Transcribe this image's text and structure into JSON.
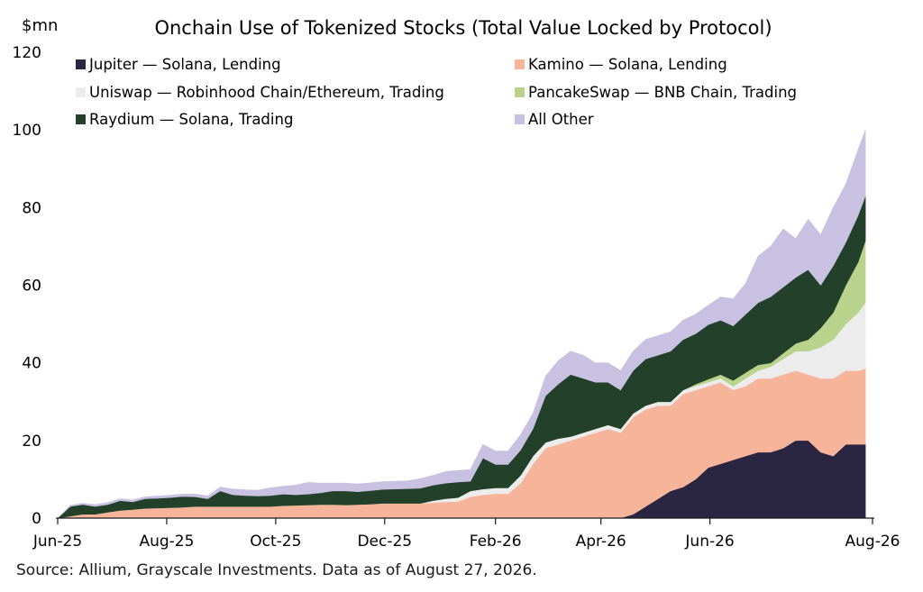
{
  "chart_data": {
    "type": "area",
    "stacked": true,
    "title": "Onchain Use of Tokenized Stocks (Total Value Locked by Protocol)",
    "ylabel": "$mn",
    "xlabel": "",
    "ylim": [
      0,
      120
    ],
    "yticks": [
      0,
      20,
      40,
      60,
      80,
      100,
      120
    ],
    "xlim": [
      "2025-06-01",
      "2026-08-31"
    ],
    "xtick_labels": [
      "Jun-25",
      "Aug-25",
      "Oct-25",
      "Dec-25",
      "Feb-26",
      "Apr-26",
      "Jun-26",
      "Aug-26"
    ],
    "legend_position": "top-left, two columns",
    "grid": false,
    "x": [
      "2025-06-01",
      "2025-06-08",
      "2025-06-15",
      "2025-06-22",
      "2025-06-29",
      "2025-07-06",
      "2025-07-13",
      "2025-07-20",
      "2025-07-27",
      "2025-08-03",
      "2025-08-10",
      "2025-08-17",
      "2025-08-24",
      "2025-08-31",
      "2025-09-07",
      "2025-09-14",
      "2025-09-21",
      "2025-09-28",
      "2025-10-05",
      "2025-10-12",
      "2025-10-19",
      "2025-10-26",
      "2025-11-02",
      "2025-11-09",
      "2025-11-16",
      "2025-11-23",
      "2025-11-30",
      "2025-12-07",
      "2025-12-14",
      "2025-12-21",
      "2025-12-28",
      "2026-01-04",
      "2026-01-11",
      "2026-01-18",
      "2026-01-25",
      "2026-02-01",
      "2026-02-08",
      "2026-02-15",
      "2026-02-22",
      "2026-03-01",
      "2026-03-08",
      "2026-03-15",
      "2026-03-22",
      "2026-03-29",
      "2026-04-05",
      "2026-04-12",
      "2026-04-19",
      "2026-04-26",
      "2026-05-03",
      "2026-05-10",
      "2026-05-17",
      "2026-05-24",
      "2026-05-31",
      "2026-06-07",
      "2026-06-14",
      "2026-06-21",
      "2026-06-28",
      "2026-07-05",
      "2026-07-12",
      "2026-07-19",
      "2026-07-26",
      "2026-08-02",
      "2026-08-09",
      "2026-08-16",
      "2026-08-23",
      "2026-08-27"
    ],
    "series": [
      {
        "name": "Jupiter — Solana, Lending",
        "color": "#2a2540",
        "values": [
          0,
          0,
          0,
          0,
          0,
          0,
          0,
          0,
          0,
          0,
          0,
          0,
          0,
          0,
          0,
          0,
          0,
          0,
          0,
          0,
          0,
          0,
          0,
          0,
          0,
          0,
          0,
          0,
          0,
          0,
          0,
          0,
          0,
          0,
          0,
          0,
          0,
          0,
          0,
          0,
          0,
          0,
          0,
          0,
          0,
          0,
          1,
          3,
          5,
          7,
          8,
          10,
          13,
          14,
          15,
          16,
          17,
          17,
          18,
          20,
          20,
          17,
          16,
          19,
          19,
          19
        ]
      },
      {
        "name": "Kamino — Solana, Lending",
        "color": "#f6b49a",
        "values": [
          0,
          0.5,
          1,
          1,
          1.5,
          2,
          2.2,
          2.5,
          2.6,
          2.7,
          2.8,
          3,
          3,
          3,
          3,
          3,
          3,
          3,
          3.2,
          3.3,
          3.4,
          3.5,
          3.5,
          3.4,
          3.5,
          3.6,
          3.8,
          3.8,
          3.8,
          3.8,
          4,
          4.2,
          4.3,
          5.5,
          6,
          6.3,
          6.3,
          9,
          14,
          18,
          19,
          20,
          21,
          22,
          23,
          22,
          25,
          25,
          24,
          22,
          24,
          23,
          21,
          21,
          18,
          18,
          19,
          19,
          19,
          18,
          17,
          19,
          20,
          19,
          19,
          19.5
        ]
      },
      {
        "name": "Uniswap — Robinhood Chain/Ethereum, Trading",
        "color": "#ececec",
        "values": [
          0,
          0,
          0,
          0,
          0,
          0,
          0,
          0,
          0,
          0,
          0,
          0,
          0,
          0,
          0,
          0,
          0,
          0,
          0,
          0,
          0,
          0,
          0,
          0,
          0,
          0,
          0,
          0,
          0,
          0,
          0.5,
          0.8,
          1,
          1.5,
          1.5,
          1.5,
          1.5,
          2,
          2,
          1.5,
          1.5,
          1,
          1,
          1,
          1,
          1,
          1,
          1,
          1,
          1,
          1,
          1,
          1,
          1,
          1,
          2,
          2,
          3,
          4,
          5,
          6,
          8,
          10,
          12,
          15,
          17
        ]
      },
      {
        "name": "PancakeSwap — BNB Chain, Trading",
        "color": "#b9d38c",
        "values": [
          0,
          0,
          0,
          0,
          0,
          0,
          0,
          0,
          0,
          0,
          0,
          0,
          0,
          0,
          0,
          0,
          0,
          0,
          0,
          0,
          0,
          0,
          0,
          0,
          0,
          0,
          0,
          0,
          0,
          0,
          0,
          0,
          0,
          0,
          0,
          0,
          0,
          0,
          0,
          0,
          0,
          0,
          0,
          0,
          0,
          0,
          0,
          0,
          0,
          0,
          0,
          0.5,
          0.8,
          1,
          1.5,
          1.5,
          1.5,
          1,
          1.5,
          2,
          3,
          5,
          7,
          10,
          13,
          16
        ]
      },
      {
        "name": "Raydium — Solana, Trading",
        "color": "#22402a",
        "values": [
          0,
          2.5,
          2.5,
          2,
          2,
          2.5,
          2,
          2.5,
          2.5,
          2.6,
          2.8,
          2.5,
          2,
          4,
          3,
          2.8,
          2.7,
          2.8,
          3,
          2.7,
          2.8,
          3,
          3.5,
          3.6,
          3.3,
          3.5,
          3.6,
          3.7,
          3.8,
          3.9,
          4,
          4,
          4,
          2.5,
          8,
          6,
          6,
          6.5,
          7,
          12,
          14,
          16,
          14,
          12,
          11,
          10,
          11,
          12,
          12,
          13,
          13,
          13,
          14,
          14,
          14,
          15,
          16,
          17,
          17,
          17,
          18,
          11,
          12,
          11,
          12,
          11.5
        ]
      },
      {
        "name": "All Other",
        "color": "#c9c1e1",
        "values": [
          0,
          0.3,
          0.3,
          0.5,
          0.5,
          0.5,
          0.5,
          0.5,
          0.6,
          0.6,
          0.6,
          0.7,
          0.7,
          1,
          1.5,
          1.5,
          1.5,
          2,
          2,
          2.5,
          3,
          2.5,
          2,
          2,
          2,
          2,
          2,
          2,
          2,
          2.5,
          2.5,
          3,
          3,
          3,
          3.5,
          3.5,
          3.5,
          4,
          4,
          5,
          6,
          6,
          6,
          5,
          5,
          5,
          5,
          5,
          5,
          5,
          5,
          5,
          5,
          6,
          7,
          8,
          12,
          13,
          15,
          10,
          13,
          13,
          15,
          15,
          17,
          17
        ]
      }
    ]
  },
  "source": "Source: Allium, Grayscale Investments. Data as of August 27, 2026."
}
